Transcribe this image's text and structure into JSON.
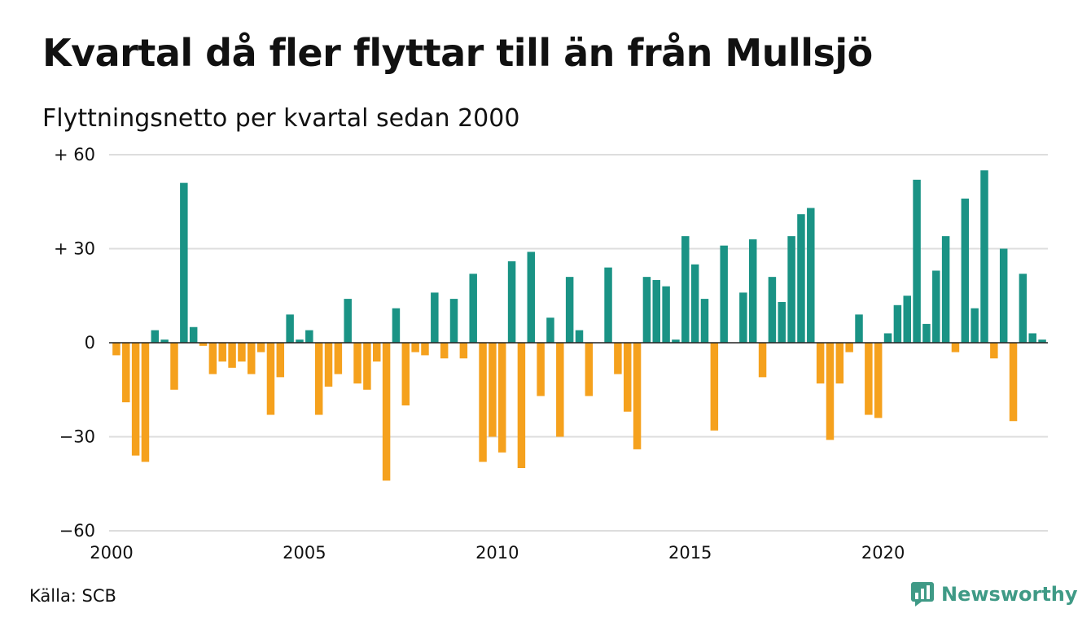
{
  "title": "Kvartal då fler flyttar till än från Mullsjö",
  "subtitle": "Flyttningsnetto per kvartal sedan 2000",
  "source": "Källa: SCB",
  "brand": "Newsworthy",
  "colors": {
    "positive": "#1a9385",
    "negative": "#f5a11d",
    "grid": "#dddddd",
    "axis": "#222222",
    "brand": "#3f9a86"
  },
  "chart_data": {
    "type": "bar",
    "start": "2000 Q1",
    "frequency": "quarterly",
    "x_ticks": [
      "2000",
      "2005",
      "2010",
      "2015",
      "2020"
    ],
    "y_ticks": [
      {
        "value": 60,
        "label": "+ 60"
      },
      {
        "value": 30,
        "label": "+ 30"
      },
      {
        "value": 0,
        "label": "0"
      },
      {
        "value": -30,
        "label": "−30"
      },
      {
        "value": -60,
        "label": "−60"
      }
    ],
    "ylim": [
      -60,
      60
    ],
    "grid": true,
    "values": [
      -4,
      -19,
      -36,
      -38,
      4,
      1,
      -15,
      51,
      5,
      -1,
      -10,
      -6,
      -8,
      -6,
      -10,
      -3,
      -23,
      -11,
      9,
      1,
      4,
      -23,
      -14,
      -10,
      14,
      -13,
      -15,
      -6,
      -44,
      11,
      -20,
      -3,
      -4,
      16,
      -5,
      14,
      -5,
      22,
      -38,
      -30,
      -35,
      26,
      -40,
      29,
      -17,
      8,
      -30,
      21,
      4,
      -17,
      0,
      24,
      -10,
      -22,
      -34,
      21,
      20,
      18,
      1,
      34,
      25,
      14,
      -28,
      31,
      0,
      16,
      33,
      -11,
      21,
      13,
      34,
      41,
      43,
      -13,
      -31,
      -13,
      -3,
      9,
      -23,
      -24,
      3,
      12,
      15,
      52,
      6,
      23,
      34,
      -3,
      46,
      11,
      55,
      -5,
      30,
      -25,
      22,
      3,
      1
    ]
  }
}
